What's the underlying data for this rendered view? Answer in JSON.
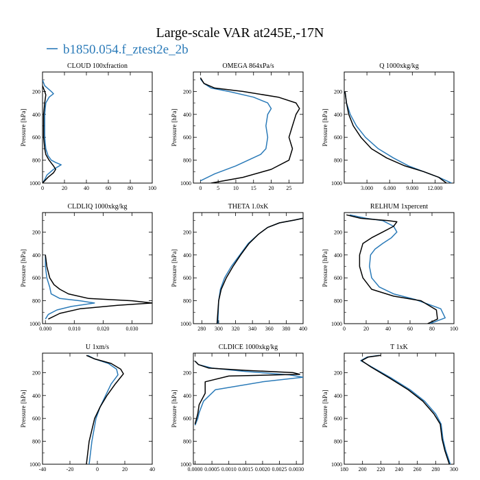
{
  "figure": {
    "title": "Large-scale VAR at245E,-17N",
    "legend_label": "b1850.054.f_ztest2e_2b",
    "colors": {
      "case": "#2a7ab8",
      "obs": "#000000"
    }
  },
  "chart_data": [
    {
      "type": "line",
      "title": "CLOUD  100xfraction",
      "ylabel": "Pressure [hPa]",
      "xlim": [
        0,
        100
      ],
      "ylim": [
        1000,
        30
      ],
      "xticks": [
        0,
        20,
        40,
        60,
        80,
        100
      ],
      "xtick_labels": [
        "0",
        "20",
        "40",
        "60",
        "80",
        "100"
      ],
      "yticks": [
        200,
        400,
        600,
        800,
        1000
      ],
      "series": [
        {
          "name": "b1850.054.f_ztest2e_2b",
          "color": "#2a7ab8",
          "x": [
            0,
            2,
            8,
            10,
            6,
            3,
            2,
            2,
            3,
            5,
            8,
            12,
            17,
            10,
            4,
            2,
            0
          ],
          "y": [
            100,
            150,
            200,
            220,
            250,
            300,
            400,
            600,
            700,
            760,
            800,
            820,
            840,
            880,
            930,
            970,
            1000
          ]
        },
        {
          "name": "",
          "color": "#000000",
          "x": [
            0,
            2,
            3,
            2,
            1,
            1,
            2,
            3,
            6,
            10,
            12,
            10,
            5,
            2,
            0
          ],
          "y": [
            150,
            200,
            230,
            300,
            400,
            600,
            700,
            750,
            800,
            850,
            880,
            910,
            950,
            980,
            1000
          ]
        }
      ]
    },
    {
      "type": "line",
      "title": "OMEGA  864xPa/s",
      "ylabel": "Pressure [hPa]",
      "xlim": [
        -2,
        29
      ],
      "ylim": [
        1000,
        30
      ],
      "xticks": [
        0,
        5,
        10,
        15,
        20,
        25
      ],
      "xtick_labels": [
        "0",
        "5",
        "10",
        "15",
        "20",
        "25"
      ],
      "yticks": [
        200,
        400,
        600,
        800,
        1000
      ],
      "series": [
        {
          "name": "b1850.054.f_ztest2e_2b",
          "color": "#2a7ab8",
          "x": [
            0,
            1,
            3,
            8,
            15,
            19,
            20,
            19,
            18.5,
            19,
            18.5,
            17,
            10,
            4,
            0
          ],
          "y": [
            90,
            130,
            170,
            200,
            250,
            300,
            350,
            400,
            500,
            600,
            700,
            750,
            850,
            920,
            980
          ]
        },
        {
          "name": "",
          "color": "#000000",
          "x": [
            0,
            1,
            4,
            12,
            22,
            27,
            28,
            27,
            26,
            25,
            26,
            25,
            20,
            12,
            3
          ],
          "y": [
            80,
            130,
            170,
            200,
            250,
            300,
            350,
            400,
            500,
            600,
            700,
            800,
            880,
            950,
            1000
          ]
        }
      ]
    },
    {
      "type": "line",
      "title": "Q  1000xkg/kg",
      "ylabel": "Pressure [hPa]",
      "xlim": [
        0,
        14.5
      ],
      "ylim": [
        1000,
        30
      ],
      "xticks": [
        3,
        6,
        9,
        12
      ],
      "xtick_labels": [
        "3.000",
        "6.000",
        "9.000",
        "12.000"
      ],
      "yticks": [
        200,
        400,
        600,
        800,
        1000
      ],
      "series": [
        {
          "name": "b1850.054.f_ztest2e_2b",
          "color": "#2a7ab8",
          "x": [
            0.1,
            0.3,
            0.8,
            1.6,
            2.8,
            4.5,
            6.5,
            8.5,
            10.5,
            12.5,
            14.2
          ],
          "y": [
            200,
            300,
            400,
            500,
            600,
            700,
            780,
            850,
            900,
            950,
            1000
          ]
        },
        {
          "name": "",
          "color": "#000000",
          "x": [
            0.1,
            0.3,
            0.6,
            1.2,
            2.2,
            3.6,
            5.6,
            8.0,
            10.5,
            12.5,
            13.5
          ],
          "y": [
            200,
            300,
            400,
            500,
            600,
            700,
            780,
            850,
            900,
            950,
            1000
          ]
        }
      ]
    },
    {
      "type": "line",
      "title": "CLDLIQ  1000xkg/kg",
      "ylabel": "Pressure [hPa]",
      "xlim": [
        -0.001,
        0.037
      ],
      "ylim": [
        1000,
        30
      ],
      "xticks": [
        0,
        0.01,
        0.02,
        0.03
      ],
      "xtick_labels": [
        "0.000",
        "0.010",
        "0.020",
        "0.030"
      ],
      "yticks": [
        200,
        400,
        600,
        800,
        1000
      ],
      "series": [
        {
          "name": "b1850.054.f_ztest2e_2b",
          "color": "#2a7ab8",
          "x": [
            0,
            0,
            0.0005,
            0.0015,
            0.002,
            0.005,
            0.012,
            0.017,
            0.009,
            0.004,
            0.001,
            0
          ],
          "y": [
            400,
            500,
            600,
            680,
            740,
            780,
            800,
            820,
            850,
            880,
            920,
            960
          ]
        },
        {
          "name": "",
          "color": "#000000",
          "x": [
            0,
            0.0005,
            0.0015,
            0.003,
            0.005,
            0.008,
            0.015,
            0.03,
            0.037,
            0.025,
            0.012,
            0.005,
            0.001
          ],
          "y": [
            400,
            500,
            600,
            660,
            700,
            740,
            780,
            800,
            820,
            840,
            870,
            910,
            960
          ]
        }
      ]
    },
    {
      "type": "line",
      "title": "THETA  1.0xK",
      "ylabel": "Pressure [hPa]",
      "xlim": [
        270,
        400
      ],
      "ylim": [
        1000,
        30
      ],
      "xticks": [
        280,
        300,
        320,
        340,
        360,
        380,
        400
      ],
      "xtick_labels": [
        "280",
        "300",
        "320",
        "340",
        "360",
        "380",
        "400"
      ],
      "yticks": [
        200,
        400,
        600,
        800,
        1000
      ],
      "series": [
        {
          "name": "b1850.054.f_ztest2e_2b",
          "color": "#2a7ab8",
          "x": [
            399,
            390,
            372,
            358,
            347,
            335,
            325,
            315,
            307,
            302,
            300,
            299
          ],
          "y": [
            80,
            95,
            120,
            160,
            220,
            300,
            400,
            500,
            600,
            700,
            800,
            1000
          ]
        },
        {
          "name": "",
          "color": "#000000",
          "x": [
            400,
            390,
            372,
            358,
            347,
            336,
            326,
            317,
            309,
            303,
            300,
            298
          ],
          "y": [
            80,
            95,
            120,
            160,
            220,
            300,
            400,
            500,
            600,
            700,
            800,
            1000
          ]
        }
      ]
    },
    {
      "type": "line",
      "title": "RELHUM  1xpercent",
      "ylabel": "Pressure [hPa]",
      "xlim": [
        0,
        100
      ],
      "ylim": [
        1000,
        30
      ],
      "xticks": [
        0,
        20,
        40,
        60,
        80,
        100
      ],
      "xtick_labels": [
        "0",
        "20",
        "40",
        "60",
        "80",
        "100"
      ],
      "yticks": [
        200,
        400,
        600,
        800,
        1000
      ],
      "series": [
        {
          "name": "b1850.054.f_ztest2e_2b",
          "color": "#2a7ab8",
          "x": [
            5,
            20,
            35,
            45,
            48,
            43,
            35,
            28,
            24,
            23,
            25,
            32,
            45,
            65,
            88,
            92,
            78
          ],
          "y": [
            50,
            80,
            100,
            150,
            200,
            250,
            300,
            350,
            400,
            500,
            600,
            680,
            740,
            790,
            870,
            950,
            1000
          ]
        },
        {
          "name": "",
          "color": "#000000",
          "x": [
            2,
            15,
            40,
            48,
            45,
            35,
            25,
            17,
            14,
            14,
            17,
            25,
            45,
            70,
            84,
            85,
            76
          ],
          "y": [
            50,
            80,
            100,
            110,
            150,
            200,
            250,
            300,
            400,
            500,
            600,
            700,
            760,
            800,
            880,
            960,
            1000
          ]
        }
      ]
    },
    {
      "type": "line",
      "title": "U  1xm/s",
      "ylabel": "Pressure [hPa]",
      "xlim": [
        -40,
        40
      ],
      "ylim": [
        1000,
        30
      ],
      "xticks": [
        -40,
        -20,
        0,
        20,
        40
      ],
      "xtick_labels": [
        "-40",
        "-20",
        "0",
        "20",
        "40"
      ],
      "yticks": [
        200,
        400,
        600,
        800,
        1000
      ],
      "series": [
        {
          "name": "b1850.054.f_ztest2e_2b",
          "color": "#2a7ab8",
          "x": [
            -7,
            -2,
            8,
            14,
            15,
            10,
            6,
            2,
            -1,
            -4,
            -5,
            -6
          ],
          "y": [
            50,
            80,
            120,
            170,
            220,
            300,
            400,
            500,
            600,
            800,
            900,
            1000
          ]
        },
        {
          "name": "",
          "color": "#000000",
          "x": [
            -8,
            -2,
            10,
            17,
            19,
            13,
            7,
            2,
            -2,
            -6,
            -7,
            -8
          ],
          "y": [
            50,
            80,
            120,
            170,
            210,
            300,
            400,
            500,
            600,
            800,
            900,
            1000
          ]
        }
      ]
    },
    {
      "type": "line",
      "title": "CLDICE  1000xkg/kg",
      "ylabel": "Pressure [hPa]",
      "xlim": [
        -5e-05,
        0.0032
      ],
      "ylim": [
        1000,
        30
      ],
      "xticks": [
        0,
        0.0005,
        0.001,
        0.0015,
        0.002,
        0.0025,
        0.003
      ],
      "xtick_labels": [
        "0.0000",
        "0.0005",
        "0.0010",
        "0.0015",
        "0.0020",
        "0.0025",
        "0.0030"
      ],
      "yticks": [
        200,
        400,
        600,
        800,
        1000
      ],
      "series": [
        {
          "name": "b1850.054.f_ztest2e_2b",
          "color": "#2a7ab8",
          "x": [
            0,
            0.0001,
            0.0005,
            0.0015,
            0.0028,
            0.0032,
            0.002,
            0.0006,
            0.00025,
            0.00012,
            8e-05,
            4e-05,
            0
          ],
          "y": [
            100,
            130,
            160,
            190,
            220,
            240,
            280,
            350,
            450,
            550,
            600,
            630,
            660
          ]
        },
        {
          "name": "",
          "color": "#000000",
          "x": [
            0,
            0.0001,
            0.0004,
            0.0015,
            0.0029,
            0.0031,
            0.001,
            0.0003,
            0.0003,
            0.00012,
            8e-05,
            0
          ],
          "y": [
            100,
            130,
            160,
            180,
            200,
            215,
            230,
            280,
            380,
            480,
            560,
            650
          ]
        }
      ]
    },
    {
      "type": "line",
      "title": "T  1xK",
      "ylabel": "Pressure [hPa]",
      "xlim": [
        180,
        300
      ],
      "ylim": [
        1000,
        30
      ],
      "xticks": [
        180,
        200,
        220,
        240,
        260,
        280,
        300
      ],
      "xtick_labels": [
        "180",
        "200",
        "220",
        "240",
        "260",
        "280",
        "300"
      ],
      "yticks": [
        200,
        400,
        600,
        800,
        1000
      ],
      "series": [
        {
          "name": "b1850.054.f_ztest2e_2b",
          "color": "#2a7ab8",
          "x": [
            218,
            205,
            198,
            210,
            232,
            252,
            268,
            280,
            286,
            288,
            291,
            296
          ],
          "y": [
            50,
            65,
            95,
            150,
            250,
            350,
            450,
            560,
            650,
            780,
            880,
            1000
          ]
        },
        {
          "name": "",
          "color": "#000000",
          "x": [
            220,
            206,
            199,
            209,
            230,
            250,
            266,
            278,
            285,
            287,
            290,
            295
          ],
          "y": [
            50,
            65,
            95,
            150,
            250,
            350,
            450,
            560,
            650,
            780,
            880,
            1000
          ]
        }
      ]
    }
  ]
}
